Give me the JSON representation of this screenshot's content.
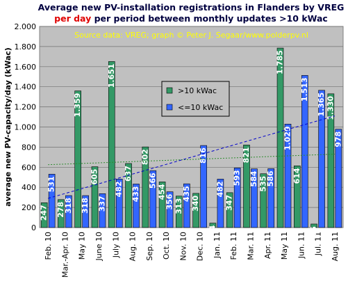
{
  "chart_data": {
    "type": "bar",
    "title": "Average new PV-installation registrations in Flanders by VREG",
    "title_highlight": "per day",
    "title_rest": " per period between monthly updates >10 kWac",
    "subtitle": "Source data: VREG; graph © Peter J. Segaar/www.polderpv.nl",
    "y_label": "average new PV-capacity/day (kWac)",
    "categories": [
      "Feb. 10",
      "Mar.-Apr. 10",
      "May 10",
      "June 10",
      "July 10",
      "Aug. 10",
      "Sep. 10",
      "Oct. 10",
      "Nov. 10",
      "Dec. 10",
      "Jan. 11",
      "Feb. 11",
      "Mar. 11",
      "Apr. 11",
      "May 11",
      "Jun. 11",
      "Jul. 11",
      "Aug. 11"
    ],
    "series": [
      {
        "name": ">10 kWac",
        "color": "#339966",
        "values": [
          247,
          278,
          1359,
          605,
          1651,
          637,
          802,
          454,
          313,
          340,
          44,
          347,
          821,
          535,
          1785,
          614,
          35,
          1330
        ],
        "value_labels": [
          "247",
          "278",
          "1.359",
          "605",
          "1.651",
          "637",
          "802",
          "454",
          "313",
          "340",
          "44",
          "347",
          "821",
          "535",
          "1.785",
          "614",
          "35",
          "1.330"
        ]
      },
      {
        "name": "<=10 kWac",
        "color": "#3366ff",
        "values": [
          531,
          318,
          318,
          337,
          482,
          433,
          566,
          356,
          435,
          816,
          482,
          593,
          584,
          586,
          1029,
          1513,
          1365,
          978
        ],
        "value_labels": [
          "531",
          "318",
          "318",
          "337",
          "482",
          "433",
          "566",
          "356",
          "435",
          "816",
          "482",
          "593",
          "584",
          "586",
          "1.029",
          "1.513",
          "1.365",
          "978"
        ]
      }
    ],
    "trendlines": [
      {
        "color": "#2e8b2e",
        "values": [
          625,
          730
        ]
      },
      {
        "color": "#0000cc",
        "values": [
          290,
          1110
        ]
      }
    ],
    "ylim": [
      0,
      2000
    ],
    "yticks": [
      0,
      200,
      400,
      600,
      800,
      {
        "value": 1000,
        "label": "1.000"
      },
      {
        "value": 1200,
        "label": "1.200"
      },
      {
        "value": 1400,
        "label": "1.400"
      },
      {
        "value": 1600,
        "label": "1.600"
      },
      {
        "value": 1800,
        "label": "1.800"
      },
      {
        "value": 2000,
        "label": "2.000"
      }
    ],
    "grid": true,
    "plot_background": "#c0c0c0"
  }
}
